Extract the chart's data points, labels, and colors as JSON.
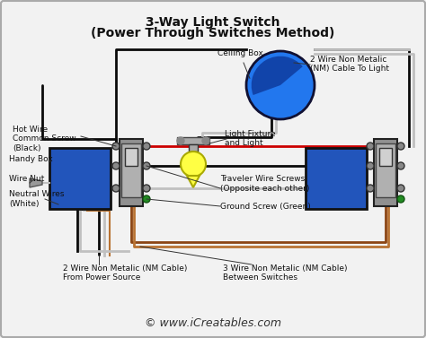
{
  "title_line1": "3-Way Light Switch",
  "title_line2": "(Power Through Switches Method)",
  "bg_color": "#f2f2f2",
  "border_color": "#bbbbbb",
  "watermark": "© www.iCreatables.com",
  "labels": {
    "ceiling_box": "Ceiling Box",
    "nm_cable_light": "2 Wire Non Metalic\n(NM) Cable To Light",
    "hot_wire": "Hot Wire\nCommon Screw\n(Black)",
    "light_fixture": "Light Fixture\nand Light",
    "handy_box": "Handy Box",
    "wire_nut": "Wire Nut",
    "neutral_wires": "Neutral Wires\n(White)",
    "traveler_screws": "Traveler Wire Screws\n(Opposite each other)",
    "ground_screw": "Ground Screw (Green)",
    "nm_cable_power": "2 Wire Non Metalic (NM Cable)\nFrom Power Source",
    "nm_cable_switches": "3 Wire Non Metalic (NM Cable)\nBetween Switches"
  },
  "colors": {
    "black_wire": "#0a0a0a",
    "white_wire": "#c0c0c0",
    "red_wire": "#cc0000",
    "brown_wire": "#8B4513",
    "copper_wire": "#b87333",
    "blue_box": "#2255bb",
    "ceiling_blue": "#2277ee",
    "light_yellow": "#ffff44",
    "switch_gray": "#909090",
    "switch_light": "#bbbbbb",
    "dark_gray": "#555555",
    "green_screw": "#228B22"
  },
  "figsize": [
    4.74,
    3.77
  ],
  "dpi": 100
}
